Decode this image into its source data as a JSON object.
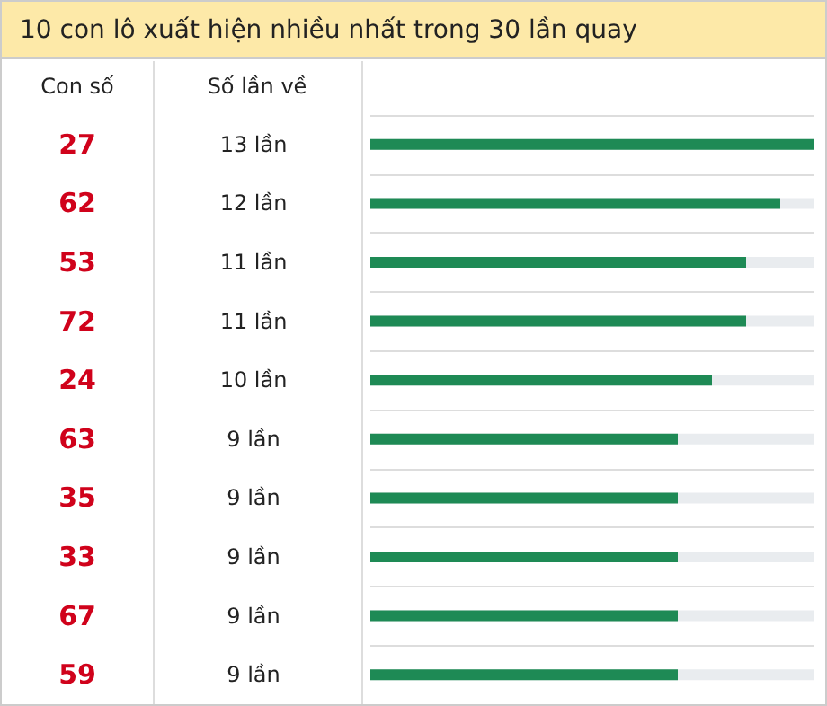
{
  "chart_data": {
    "type": "bar",
    "orientation": "horizontal",
    "title": "10 con lô xuất hiện nhiều nhất trong 30 lần quay",
    "annotations": [
      "Con số",
      "Số lần về"
    ],
    "categories": [
      "27",
      "62",
      "53",
      "72",
      "24",
      "63",
      "35",
      "33",
      "67",
      "59"
    ],
    "values": [
      13,
      12,
      11,
      11,
      10,
      9,
      9,
      9,
      9,
      9
    ],
    "value_labels": [
      "13 lần",
      "12 lần",
      "11 lần",
      "11 lần",
      "10 lần",
      "9 lần",
      "9 lần",
      "9 lần",
      "9 lần",
      "9 lần"
    ],
    "color": "#1e8a55",
    "xlim": [
      0,
      13
    ],
    "tick_labels": "y"
  }
}
